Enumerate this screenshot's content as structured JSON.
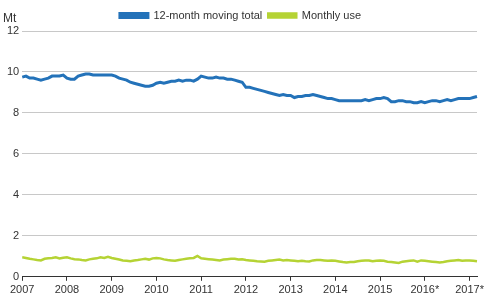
{
  "chart_data": {
    "type": "line",
    "y_label": "Mt",
    "categories": [
      "2007",
      null,
      null,
      null,
      null,
      null,
      null,
      null,
      null,
      null,
      null,
      null,
      "2008",
      null,
      null,
      null,
      null,
      null,
      null,
      null,
      null,
      null,
      null,
      null,
      "2009",
      null,
      null,
      null,
      null,
      null,
      null,
      null,
      null,
      null,
      null,
      null,
      "2010",
      null,
      null,
      null,
      null,
      null,
      null,
      null,
      null,
      null,
      null,
      null,
      "2011",
      null,
      null,
      null,
      null,
      null,
      null,
      null,
      null,
      null,
      null,
      null,
      "2012",
      null,
      null,
      null,
      null,
      null,
      null,
      null,
      null,
      null,
      null,
      null,
      "2013",
      null,
      null,
      null,
      null,
      null,
      null,
      null,
      null,
      null,
      null,
      null,
      "2014",
      null,
      null,
      null,
      null,
      null,
      null,
      null,
      null,
      null,
      null,
      null,
      "2015",
      null,
      null,
      null,
      null,
      null,
      null,
      null,
      null,
      null,
      null,
      null,
      "2016*",
      null,
      null,
      null,
      null,
      null,
      null,
      null,
      null,
      null,
      null,
      null,
      "2017*",
      null,
      null
    ],
    "series": [
      {
        "name": "12-month moving total",
        "color": "#2372b9",
        "values": [
          9.75,
          9.8,
          9.7,
          9.7,
          9.65,
          9.6,
          9.65,
          9.7,
          9.8,
          9.8,
          9.8,
          9.85,
          9.7,
          9.65,
          9.65,
          9.8,
          9.85,
          9.9,
          9.9,
          9.85,
          9.85,
          9.85,
          9.85,
          9.85,
          9.85,
          9.8,
          9.7,
          9.65,
          9.6,
          9.5,
          9.45,
          9.4,
          9.35,
          9.3,
          9.3,
          9.35,
          9.45,
          9.5,
          9.45,
          9.5,
          9.55,
          9.55,
          9.6,
          9.55,
          9.6,
          9.6,
          9.55,
          9.65,
          9.8,
          9.75,
          9.7,
          9.7,
          9.75,
          9.7,
          9.7,
          9.65,
          9.65,
          9.6,
          9.55,
          9.5,
          9.25,
          9.25,
          9.2,
          9.15,
          9.1,
          9.05,
          9.0,
          8.95,
          8.9,
          8.85,
          8.9,
          8.85,
          8.85,
          8.75,
          8.8,
          8.8,
          8.85,
          8.85,
          8.9,
          8.85,
          8.8,
          8.75,
          8.7,
          8.7,
          8.65,
          8.6,
          8.6,
          8.6,
          8.6,
          8.6,
          8.6,
          8.6,
          8.65,
          8.6,
          8.65,
          8.7,
          8.7,
          8.75,
          8.7,
          8.55,
          8.55,
          8.6,
          8.6,
          8.55,
          8.55,
          8.5,
          8.5,
          8.55,
          8.5,
          8.55,
          8.6,
          8.6,
          8.55,
          8.6,
          8.65,
          8.6,
          8.65,
          8.7,
          8.7,
          8.7,
          8.7,
          8.75,
          8.8
        ]
      },
      {
        "name": "Monthly use",
        "color": "#b5d334",
        "values": [
          0.95,
          0.92,
          0.88,
          0.85,
          0.82,
          0.8,
          0.88,
          0.9,
          0.92,
          0.95,
          0.9,
          0.93,
          0.95,
          0.9,
          0.86,
          0.85,
          0.82,
          0.8,
          0.85,
          0.88,
          0.9,
          0.95,
          0.92,
          0.98,
          0.92,
          0.88,
          0.84,
          0.8,
          0.78,
          0.76,
          0.8,
          0.82,
          0.85,
          0.88,
          0.84,
          0.9,
          0.92,
          0.9,
          0.85,
          0.82,
          0.8,
          0.78,
          0.82,
          0.85,
          0.88,
          0.9,
          0.92,
          1.02,
          0.9,
          0.88,
          0.86,
          0.84,
          0.82,
          0.8,
          0.84,
          0.86,
          0.88,
          0.88,
          0.84,
          0.86,
          0.82,
          0.8,
          0.78,
          0.76,
          0.75,
          0.74,
          0.78,
          0.8,
          0.82,
          0.84,
          0.8,
          0.82,
          0.8,
          0.78,
          0.76,
          0.78,
          0.76,
          0.75,
          0.8,
          0.82,
          0.82,
          0.8,
          0.78,
          0.8,
          0.78,
          0.75,
          0.72,
          0.7,
          0.72,
          0.72,
          0.76,
          0.78,
          0.8,
          0.8,
          0.76,
          0.78,
          0.8,
          0.78,
          0.74,
          0.72,
          0.7,
          0.68,
          0.74,
          0.76,
          0.78,
          0.8,
          0.74,
          0.8,
          0.78,
          0.76,
          0.74,
          0.72,
          0.7,
          0.72,
          0.76,
          0.78,
          0.8,
          0.82,
          0.78,
          0.8,
          0.8,
          0.78,
          0.76
        ]
      }
    ],
    "ylim": [
      0,
      12
    ],
    "yticks": [
      0,
      2,
      4,
      6,
      8,
      10,
      12
    ],
    "grid": true,
    "legend": "top"
  }
}
